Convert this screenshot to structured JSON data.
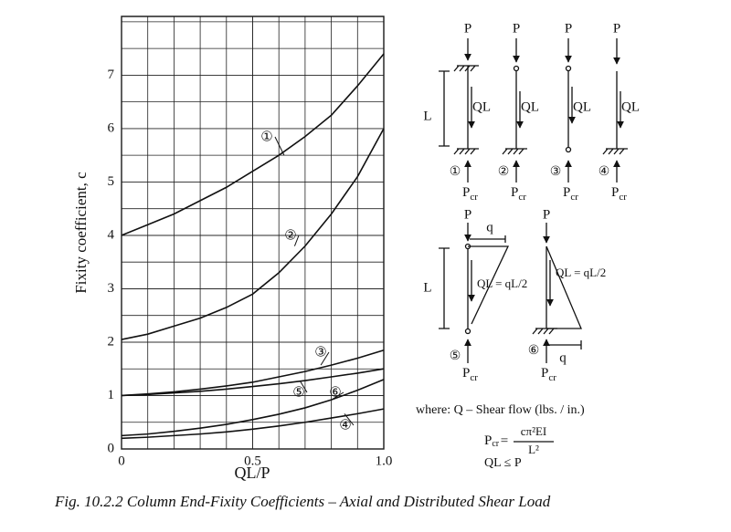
{
  "chart_data": {
    "type": "line",
    "ylabel": "Fixity coefficient, c",
    "xlabel": "QL/P",
    "caption": "Fig. 10.2.2  Column End-Fixity Coefficients – Axial and Distributed Shear Load",
    "x": [
      0,
      0.1,
      0.2,
      0.3,
      0.4,
      0.5,
      0.6,
      0.7,
      0.8,
      0.9,
      1.0
    ],
    "series": [
      {
        "name": "①",
        "color": "#111111",
        "values": [
          4.0,
          4.2,
          4.4,
          4.65,
          4.9,
          5.2,
          5.5,
          5.85,
          6.25,
          6.8,
          7.4
        ]
      },
      {
        "name": "②",
        "color": "#111111",
        "values": [
          2.05,
          2.15,
          2.3,
          2.45,
          2.65,
          2.9,
          3.3,
          3.8,
          4.4,
          5.1,
          6.0
        ]
      },
      {
        "name": "③",
        "color": "#111111",
        "values": [
          1.0,
          1.03,
          1.07,
          1.12,
          1.18,
          1.25,
          1.35,
          1.45,
          1.57,
          1.7,
          1.85
        ]
      },
      {
        "name": "④",
        "color": "#111111",
        "values": [
          0.2,
          0.22,
          0.25,
          0.28,
          0.32,
          0.37,
          0.43,
          0.5,
          0.58,
          0.66,
          0.75
        ]
      },
      {
        "name": "⑤",
        "color": "#111111",
        "values": [
          1.0,
          1.02,
          1.05,
          1.08,
          1.12,
          1.17,
          1.22,
          1.28,
          1.35,
          1.42,
          1.5
        ]
      },
      {
        "name": "⑥",
        "color": "#111111",
        "values": [
          0.25,
          0.28,
          0.33,
          0.39,
          0.46,
          0.55,
          0.65,
          0.77,
          0.92,
          1.1,
          1.3
        ]
      }
    ],
    "xlim": [
      0,
      1.0
    ],
    "ylim": [
      0,
      8.1
    ],
    "xticks": [
      0,
      0.5,
      {
        "value": 1.0,
        "label": "1.0"
      }
    ],
    "yticks": [
      0,
      1,
      2,
      3,
      4,
      5,
      6,
      7
    ],
    "grid": true
  },
  "diagrams": {
    "columns": [
      {
        "load": "P",
        "shear": "QL",
        "number": "①",
        "reaction": "P",
        "reaction_sub": "cr"
      },
      {
        "load": "P",
        "shear": "QL",
        "number": "②",
        "reaction": "P",
        "reaction_sub": "cr"
      },
      {
        "load": "P",
        "shear": "QL",
        "number": "③",
        "reaction": "P",
        "reaction_sub": "cr"
      },
      {
        "load": "P",
        "shear": "QL",
        "number": "④",
        "reaction": "P",
        "reaction_sub": "cr"
      },
      {
        "load": "P",
        "shear": "QL = qL/2",
        "number": "⑤",
        "reaction": "P",
        "reaction_sub": "cr",
        "q": "q"
      },
      {
        "load": "P",
        "shear": "QL = qL/2",
        "number": "⑥",
        "reaction": "P",
        "reaction_sub": "cr",
        "q": "q"
      }
    ],
    "length": "L",
    "where": "where:  Q – Shear flow (lbs. / in.)",
    "formula_lhs": "P",
    "formula_lhs_sub": "cr",
    "formula_eq": "=",
    "formula_num": "cπ²EI",
    "formula_den": "L²",
    "condition": "QL ≤ P"
  }
}
